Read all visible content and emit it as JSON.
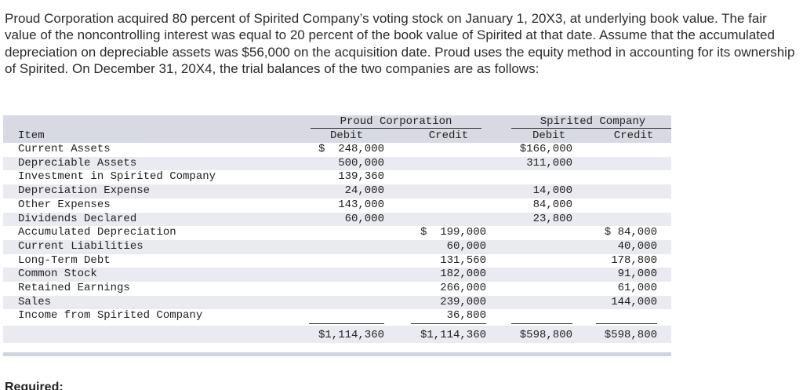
{
  "intro": "Proud Corporation acquired 80 percent of Spirited Company’s voting stock on January 1, 20X3, at underlying book value. The fair value of the noncontrolling interest was equal to 20 percent of the book value of Spirited at that date. Assume that the accumulated depreciation on depreciable assets was $56,000 on the acquisition date. Proud uses the equity method in accounting for its ownership of Spirited. On December 31, 20X4, the trial balances of the two companies are as follows:",
  "table": {
    "item_header": "Item",
    "company_a": "Proud Corporation",
    "company_b": "Spirited Company",
    "debit_label": "Debit",
    "credit_label": "Credit",
    "rows": [
      {
        "item": "Current Assets",
        "a_dr": "$  248,000",
        "a_cr": "",
        "b_dr": "$166,000",
        "b_cr": ""
      },
      {
        "item": "Depreciable Assets",
        "a_dr": "500,000",
        "a_cr": "",
        "b_dr": "311,000",
        "b_cr": ""
      },
      {
        "item": "Investment in Spirited Company",
        "a_dr": "139,360",
        "a_cr": "",
        "b_dr": "",
        "b_cr": ""
      },
      {
        "item": "Depreciation Expense",
        "a_dr": "24,000",
        "a_cr": "",
        "b_dr": "14,000",
        "b_cr": ""
      },
      {
        "item": "Other Expenses",
        "a_dr": "143,000",
        "a_cr": "",
        "b_dr": "84,000",
        "b_cr": ""
      },
      {
        "item": "Dividends Declared",
        "a_dr": "60,000",
        "a_cr": "",
        "b_dr": "23,800",
        "b_cr": ""
      },
      {
        "item": "Accumulated Depreciation",
        "a_dr": "",
        "a_cr": "$  199,000",
        "b_dr": "",
        "b_cr": "$ 84,000"
      },
      {
        "item": "Current Liabilities",
        "a_dr": "",
        "a_cr": "60,000",
        "b_dr": "",
        "b_cr": "40,000"
      },
      {
        "item": "Long-Term Debt",
        "a_dr": "",
        "a_cr": "131,560",
        "b_dr": "",
        "b_cr": "178,800"
      },
      {
        "item": "Common Stock",
        "a_dr": "",
        "a_cr": "182,000",
        "b_dr": "",
        "b_cr": "91,000"
      },
      {
        "item": "Retained Earnings",
        "a_dr": "",
        "a_cr": "266,000",
        "b_dr": "",
        "b_cr": "61,000"
      },
      {
        "item": "Sales",
        "a_dr": "",
        "a_cr": "239,000",
        "b_dr": "",
        "b_cr": "144,000"
      },
      {
        "item": "Income from Spirited Company",
        "a_dr": "",
        "a_cr": "36,800",
        "b_dr": "",
        "b_cr": ""
      }
    ],
    "totals": {
      "a_dr": "$1,114,360",
      "a_cr": "$1,114,360",
      "b_dr": "$598,800",
      "b_cr": "$598,800"
    }
  },
  "required_label": "Required:"
}
